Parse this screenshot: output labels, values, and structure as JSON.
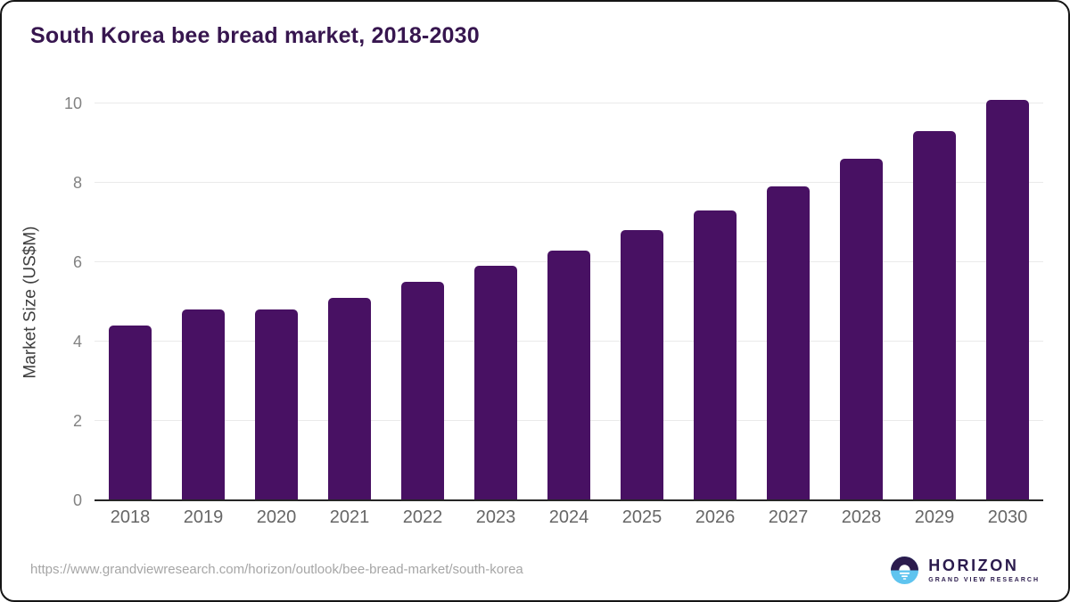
{
  "header": {
    "title": "South Korea bee bread market, 2018-2030"
  },
  "chart_data": {
    "type": "bar",
    "title": "South Korea bee bread market, 2018-2030",
    "categories": [
      "2018",
      "2019",
      "2020",
      "2021",
      "2022",
      "2023",
      "2024",
      "2025",
      "2026",
      "2027",
      "2028",
      "2029",
      "2030"
    ],
    "values": [
      4.4,
      4.8,
      4.8,
      5.1,
      5.5,
      5.9,
      6.3,
      6.8,
      7.3,
      7.9,
      8.6,
      9.3,
      10.1
    ],
    "xlabel": "",
    "ylabel": "Market Size (US$M)",
    "ylim": [
      0,
      10
    ],
    "yticks": [
      0,
      2,
      4,
      6,
      8,
      10
    ],
    "grid": true,
    "legend": "none",
    "bar_color": "#481163"
  },
  "footer": {
    "source_url": "https://www.grandviewresearch.com/horizon/outlook/bee-bread-market/south-korea",
    "logo": {
      "name": "HORIZON",
      "tagline": "GRAND VIEW RESEARCH"
    }
  },
  "colors": {
    "card_border": "#151515",
    "title": "#37164f",
    "bar": "#481163",
    "gridline": "#eaeaea",
    "axis_line": "#262626",
    "tick_label": "#828282",
    "x_label": "#666666",
    "y_axis_title": "#3f3f3f",
    "url": "#a6a6a6",
    "logo_purple": "#2b1b4d",
    "logo_blue": "#5fc4ef"
  }
}
